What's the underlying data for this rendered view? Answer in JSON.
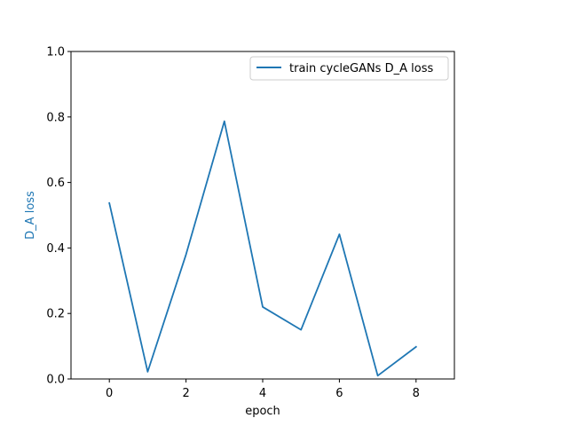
{
  "chart_data": {
    "type": "line",
    "title": "",
    "xlabel": "epoch",
    "ylabel": "D_A loss",
    "xlim": [
      -1,
      9
    ],
    "ylim": [
      0,
      1
    ],
    "xticks": [
      0,
      2,
      4,
      6,
      8
    ],
    "yticks": [
      0.0,
      0.2,
      0.4,
      0.6,
      0.8,
      1.0
    ],
    "xtick_labels": [
      "0",
      "2",
      "4",
      "6",
      "8"
    ],
    "ytick_labels": [
      "0.0",
      "0.2",
      "0.4",
      "0.6",
      "0.8",
      "1.0"
    ],
    "grid": false,
    "legend_position": "top-right",
    "series": [
      {
        "name": "train cycleGANs D_A loss",
        "color": "#1f77b4",
        "x": [
          0,
          1,
          2,
          3,
          4,
          5,
          6,
          7,
          8
        ],
        "y": [
          0.537,
          0.022,
          0.38,
          0.787,
          0.22,
          0.15,
          0.442,
          0.01,
          0.098
        ]
      }
    ],
    "ylabel_color": "#1f77b4"
  }
}
